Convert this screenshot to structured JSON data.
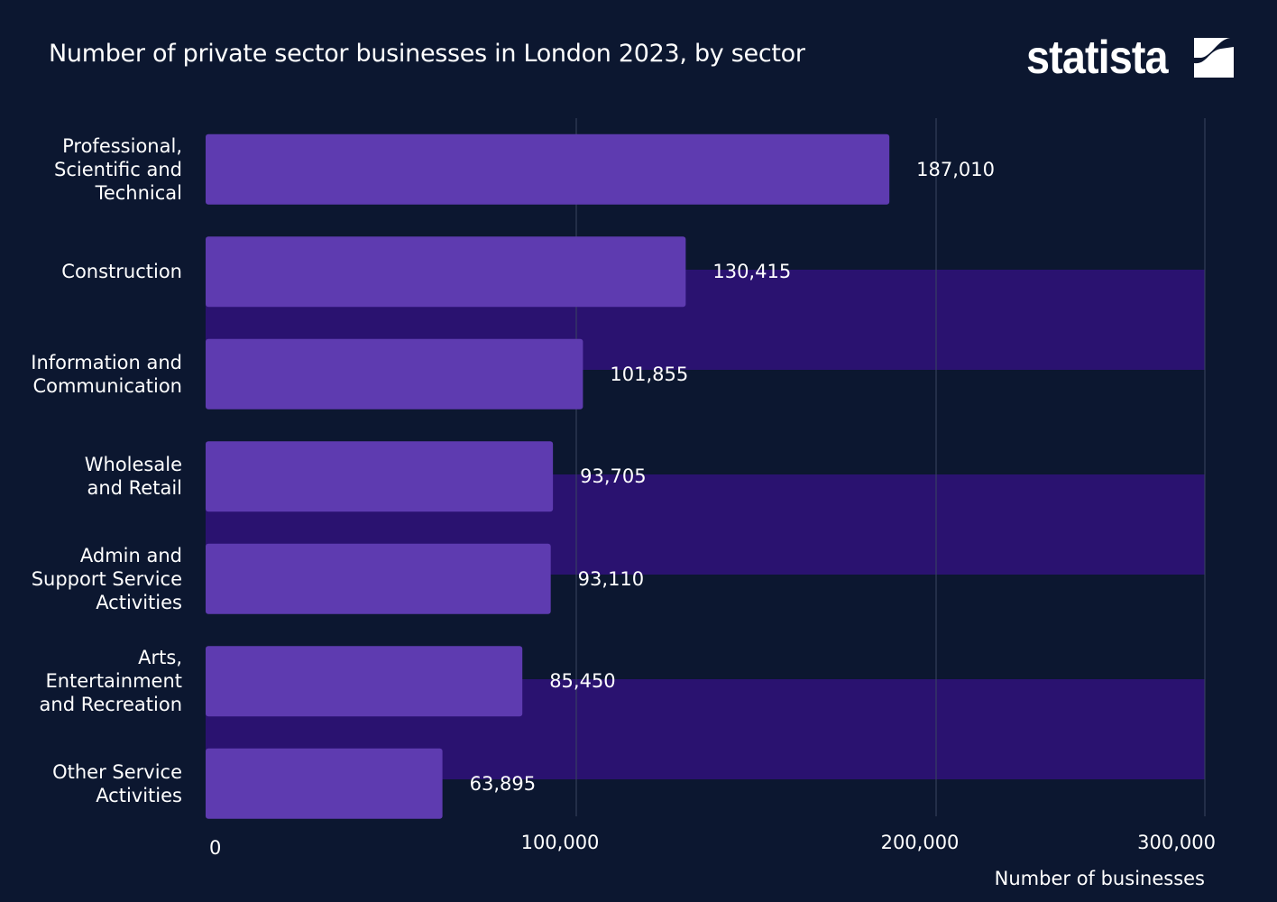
{
  "chart_data": {
    "type": "bar",
    "orientation": "horizontal",
    "title": "Number of private sector businesses in London 2023, by sector",
    "xlabel": "Number of businesses",
    "ylabel": "",
    "categories": [
      "Professional,\nScientific and\nTechnical",
      "Construction",
      "Information and\nCommunication",
      "Wholesale\nand Retail",
      "Admin and\nSupport Service\nActivities",
      "Arts,\nEntertainment\nand Recreation",
      "Other Service\nActivities"
    ],
    "values": [
      187010,
      130415,
      101855,
      93705,
      93110,
      85450,
      63895
    ],
    "value_labels": [
      "187,010",
      "130,415",
      "101,855",
      "93,705",
      "93,110",
      "85,450",
      "63,895"
    ],
    "xlim": [
      0,
      300000
    ],
    "ticks": [
      0,
      100000,
      200000,
      300000
    ],
    "tick_labels": [
      "0",
      "100,000",
      "200,000",
      "300,000"
    ],
    "grid": true,
    "colors": {
      "background": "#0c1730",
      "bar": "#5e3bb0",
      "band": "#2a1270",
      "grid": "#3a4560",
      "text": "#ffffff"
    }
  },
  "brand": {
    "logo_text": "statista"
  }
}
